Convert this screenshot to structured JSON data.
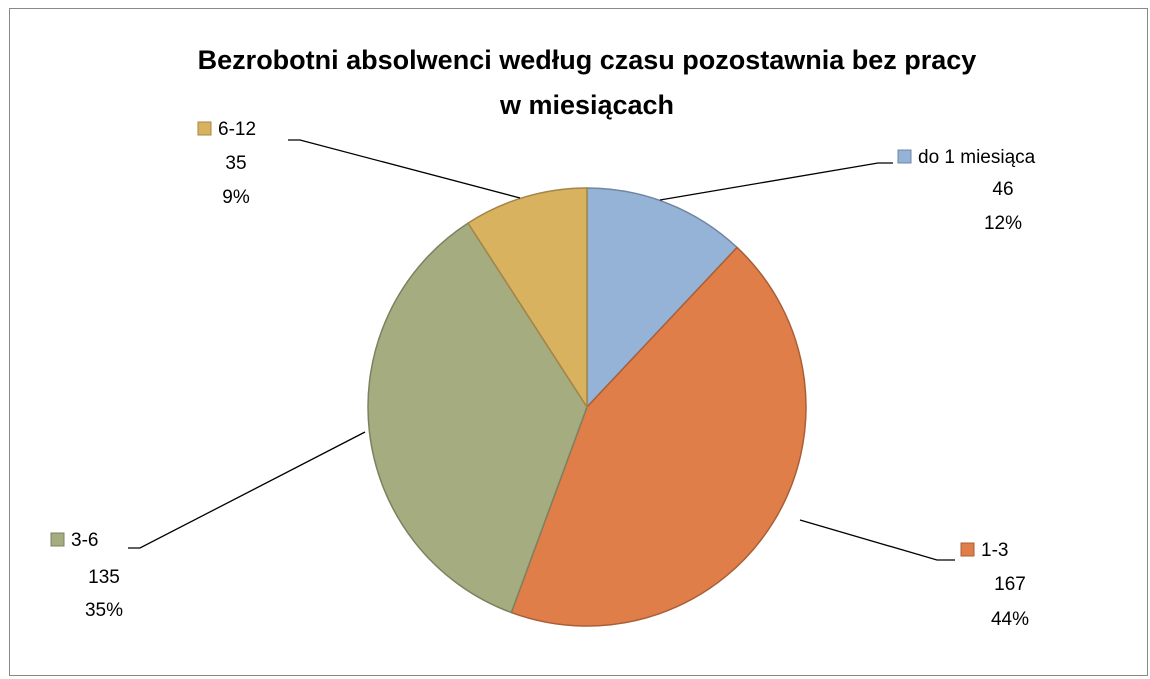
{
  "chart_data": {
    "type": "pie",
    "title": "Bezrobotni absolwenci według czasu pozostawnia bez pracy w miesiącach",
    "categories": [
      "do 1 miesiąca",
      "1-3",
      "3-6",
      "6-12"
    ],
    "values": [
      46,
      167,
      135,
      35
    ],
    "percent_labels": [
      "12%",
      "44%",
      "35%",
      "9%"
    ],
    "colors": [
      "#95b3d7",
      "#e07e49",
      "#a5ac80",
      "#d9b25f"
    ]
  }
}
